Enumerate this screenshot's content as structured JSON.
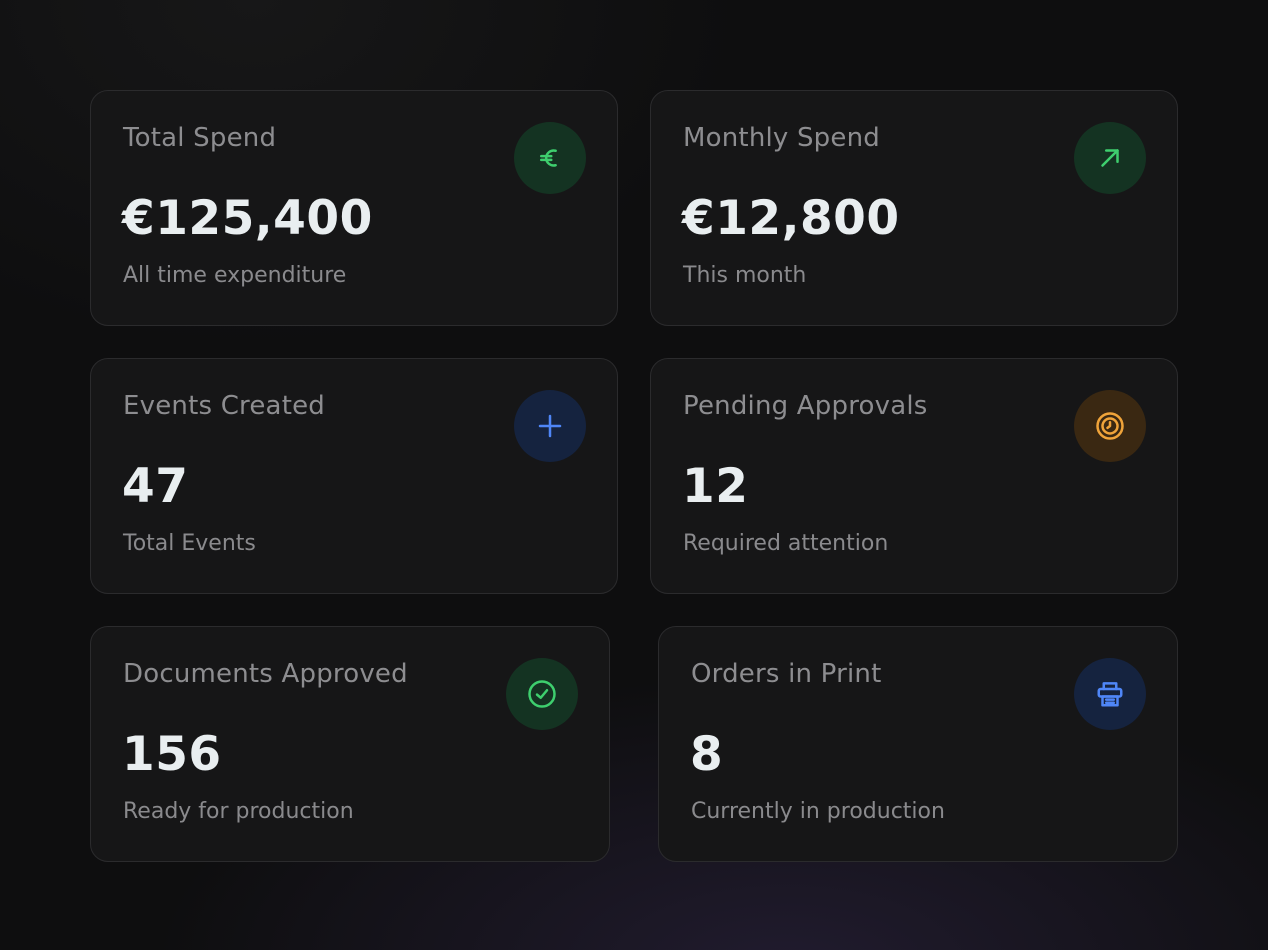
{
  "cards": [
    {
      "label": "Total Spend",
      "value": "€125,400",
      "subtitle": "All time expenditure",
      "icon": "euro-icon",
      "accent": "#3ecf6e"
    },
    {
      "label": "Monthly Spend",
      "value": "€12,800",
      "subtitle": "This month",
      "icon": "trending-up-arrow-icon",
      "accent": "#3ecf6e"
    },
    {
      "label": "Events Created",
      "value": "47",
      "subtitle": "Total Events",
      "icon": "plus-icon",
      "accent": "#4f86f7"
    },
    {
      "label": "Pending Approvals",
      "value": "12",
      "subtitle": "Required attention",
      "icon": "clock-icon",
      "accent": "#f0a43a"
    },
    {
      "label": "Documents Approved",
      "value": "156",
      "subtitle": "Ready for production",
      "icon": "check-circle-icon",
      "accent": "#3ecf6e"
    },
    {
      "label": "Orders in Print",
      "value": "8",
      "subtitle": "Currently in production",
      "icon": "printer-icon",
      "accent": "#4f86f7"
    }
  ],
  "colors": {
    "background": "#0e0e0f",
    "card": "#161617",
    "card_border": "#2b2b2d",
    "value_text": "#e9eef0",
    "muted_text": "#8d8d90"
  }
}
